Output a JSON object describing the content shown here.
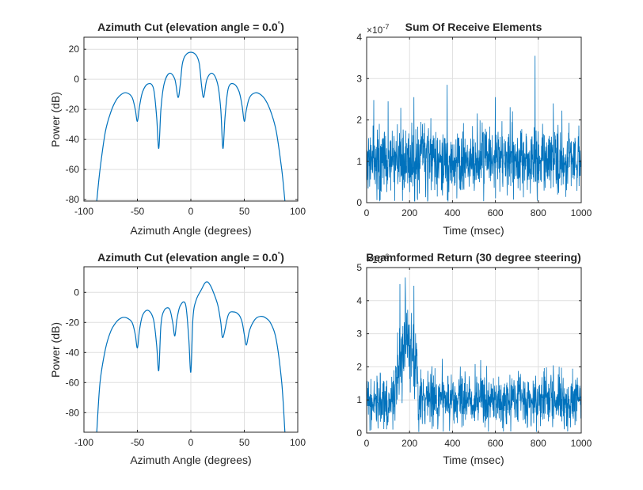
{
  "figure": {
    "background": "#ffffff",
    "line_color": "#0072BD",
    "grid_color": "#dfdfdf",
    "axes_color": "#262626"
  },
  "chart_data": [
    {
      "type": "line",
      "title": "Azimuth Cut (elevation angle = 0.0°)",
      "title_main": "Azimuth Cut (elevation angle = 0.0",
      "title_degree": "°",
      "title_close": ")",
      "xlabel": "Azimuth Angle (degrees)",
      "ylabel": "Power (dB)",
      "xlim": [
        -100,
        100
      ],
      "ylim": [
        -81,
        28
      ],
      "xticks": [
        -100,
        -50,
        0,
        50,
        100
      ],
      "yticks": [
        -80,
        -60,
        -40,
        -20,
        0,
        20
      ],
      "grid": true,
      "series": [
        {
          "x": [
            -88,
            -85,
            -80,
            -75,
            -70,
            -65,
            -60,
            -55,
            -52,
            -50,
            -48,
            -45,
            -40,
            -35,
            -32,
            -30,
            -28,
            -25,
            -20,
            -15,
            -12,
            -10,
            -8,
            -5,
            0,
            5,
            8,
            10,
            12,
            15,
            20,
            25,
            28,
            30,
            32,
            35,
            40,
            45,
            48,
            50,
            52,
            55,
            60,
            65,
            70,
            75,
            80,
            85,
            88
          ],
          "y": [
            -81,
            -60,
            -35,
            -22,
            -14,
            -10,
            -9,
            -12,
            -20,
            -28,
            -18,
            -8,
            -3,
            -6,
            -25,
            -46,
            -20,
            -3,
            4,
            0,
            -12,
            -4,
            10,
            16,
            18,
            16,
            10,
            -4,
            -12,
            0,
            4,
            -3,
            -20,
            -46,
            -25,
            -6,
            -3,
            -8,
            -18,
            -28,
            -20,
            -12,
            -9,
            -10,
            -14,
            -22,
            -35,
            -60,
            -81
          ]
        }
      ]
    },
    {
      "type": "line",
      "title": "Sum Of Receive Elements",
      "exponent_base": "×10",
      "exponent_power": "-7",
      "xlabel": "Time (msec)",
      "ylabel": "",
      "xlim": [
        0,
        1000
      ],
      "ylim": [
        0,
        4
      ],
      "xticks": [
        0,
        200,
        400,
        600,
        800,
        1000
      ],
      "yticks": [
        0,
        1,
        2,
        3,
        4
      ],
      "grid": true,
      "noise": {
        "n": 1000,
        "x_max": 1000,
        "peaks": [
          [
            375,
            2.85
          ],
          [
            785,
            3.55
          ],
          [
            220,
            2.55
          ],
          [
            600,
            2.55
          ],
          [
            100,
            2.45
          ],
          [
            870,
            2.4
          ]
        ]
      }
    },
    {
      "type": "line",
      "title": "Azimuth Cut (elevation angle = 0.0°)",
      "title_main": "Azimuth Cut (elevation angle = 0.0",
      "title_degree": "°",
      "title_close": ")",
      "xlabel": "Azimuth Angle (degrees)",
      "ylabel": "Power (dB)",
      "xlim": [
        -100,
        100
      ],
      "ylim": [
        -93,
        17
      ],
      "xticks": [
        -100,
        -50,
        0,
        50,
        100
      ],
      "yticks": [
        -80,
        -60,
        -40,
        -20,
        0
      ],
      "grid": true,
      "series": [
        {
          "x": [
            -88,
            -85,
            -80,
            -75,
            -70,
            -65,
            -60,
            -55,
            -52,
            -50,
            -48,
            -45,
            -40,
            -35,
            -32,
            -30,
            -28,
            -25,
            -20,
            -17,
            -15,
            -13,
            -10,
            -5,
            -2,
            0,
            2,
            5,
            10,
            13,
            15,
            17,
            20,
            25,
            28,
            30,
            35,
            40,
            45,
            48,
            50,
            52,
            55,
            60,
            65,
            70,
            75,
            80,
            85,
            88
          ],
          "y": [
            -93,
            -60,
            -38,
            -26,
            -20,
            -17,
            -17,
            -20,
            -28,
            -37,
            -25,
            -15,
            -12,
            -18,
            -35,
            -52,
            -22,
            -12,
            -11,
            -20,
            -29,
            -18,
            -9,
            -8,
            -30,
            -53,
            -17,
            -5,
            2,
            6,
            7,
            6,
            2,
            -8,
            -20,
            -30,
            -15,
            -13,
            -15,
            -20,
            -28,
            -35,
            -25,
            -18,
            -16,
            -17,
            -21,
            -32,
            -60,
            -93
          ]
        }
      ]
    },
    {
      "type": "line",
      "title": "Beamformed Return (30 degree steering)",
      "exponent_base": "×10",
      "exponent_power": "-6",
      "xlabel": "Time (msec)",
      "ylabel": "",
      "xlim": [
        0,
        1000
      ],
      "ylim": [
        0,
        5
      ],
      "xticks": [
        0,
        200,
        400,
        600,
        800,
        1000
      ],
      "yticks": [
        0,
        1,
        2,
        3,
        4,
        5
      ],
      "grid": true,
      "noise": {
        "n": 1000,
        "x_max": 1000,
        "burst": [
          135,
          240
        ],
        "peaks": [
          [
            180,
            4.7
          ],
          [
            155,
            4.5
          ],
          [
            220,
            4.45
          ]
        ]
      }
    }
  ]
}
